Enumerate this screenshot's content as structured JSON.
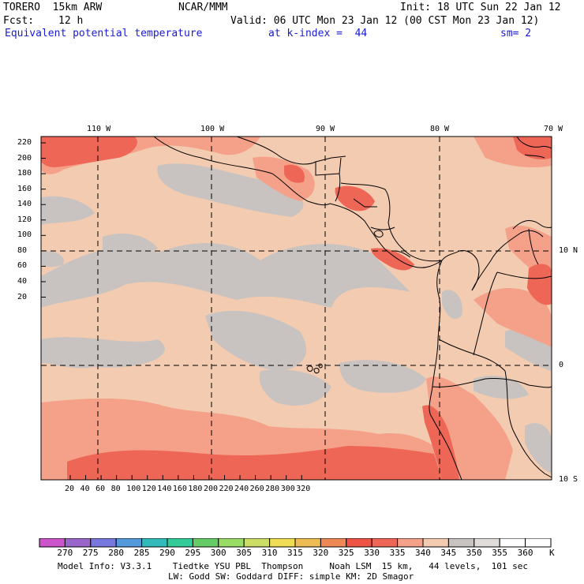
{
  "header": {
    "model": "TORERO  15km ARW",
    "center": "NCAR/MMM",
    "init": "Init: 18 UTC Sun 22 Jan 12",
    "fcst_label": "Fcst:",
    "fcst_value": "12 h",
    "valid": "Valid: 06 UTC Mon 23 Jan 12 (00 CST Mon 23 Jan 12)",
    "field": "Equivalent potential temperature",
    "level": "at k-index =  44",
    "smoothing": "sm= 2"
  },
  "map": {
    "top_lon_labels": [
      "110 W",
      "100 W",
      "90 W",
      "80 W",
      "70 W"
    ],
    "right_lat_labels": [
      "10 N",
      "0",
      "10 S"
    ],
    "y_grid_labels": [
      "220",
      "200",
      "180",
      "160",
      "140",
      "120",
      "100",
      "80",
      "60",
      "40",
      "20"
    ],
    "x_grid_labels": [
      "20",
      "40",
      "60",
      "80",
      "100",
      "120",
      "140",
      "160",
      "180",
      "200",
      "220",
      "240",
      "260",
      "280",
      "300",
      "320"
    ],
    "grid_line_style": "dashed"
  },
  "colorbar": {
    "values": [
      "270",
      "275",
      "280",
      "285",
      "290",
      "295",
      "300",
      "305",
      "310",
      "315",
      "320",
      "325",
      "330",
      "335",
      "340",
      "345",
      "350",
      "355",
      "360"
    ],
    "unit": "K",
    "colors": [
      "#cc55cc",
      "#9966cc",
      "#7777dd",
      "#5599dd",
      "#33bbbb",
      "#33cc99",
      "#66cc66",
      "#99dd66",
      "#ccdd66",
      "#eedd55",
      "#eebb55",
      "#ee8855",
      "#ee5544",
      "#ee6655",
      "#f5a088",
      "#f2cbb0",
      "#c8c3c0",
      "#e0dcda",
      "#ffffff"
    ]
  },
  "footer": {
    "line1": "Model Info: V3.3.1    Tiedtke YSU PBL  Thompson     Noah LSM  15 km,   44 levels,  101 sec",
    "line2": "LW: Godd SW: Goddard DIFF: simple KM: 2D Smagor"
  },
  "palette": {
    "base": "#f2cbb0",
    "gray": "#c8c3c0",
    "warm": "#f5a088",
    "hot": "#ee6655",
    "land_line": "#000000"
  }
}
